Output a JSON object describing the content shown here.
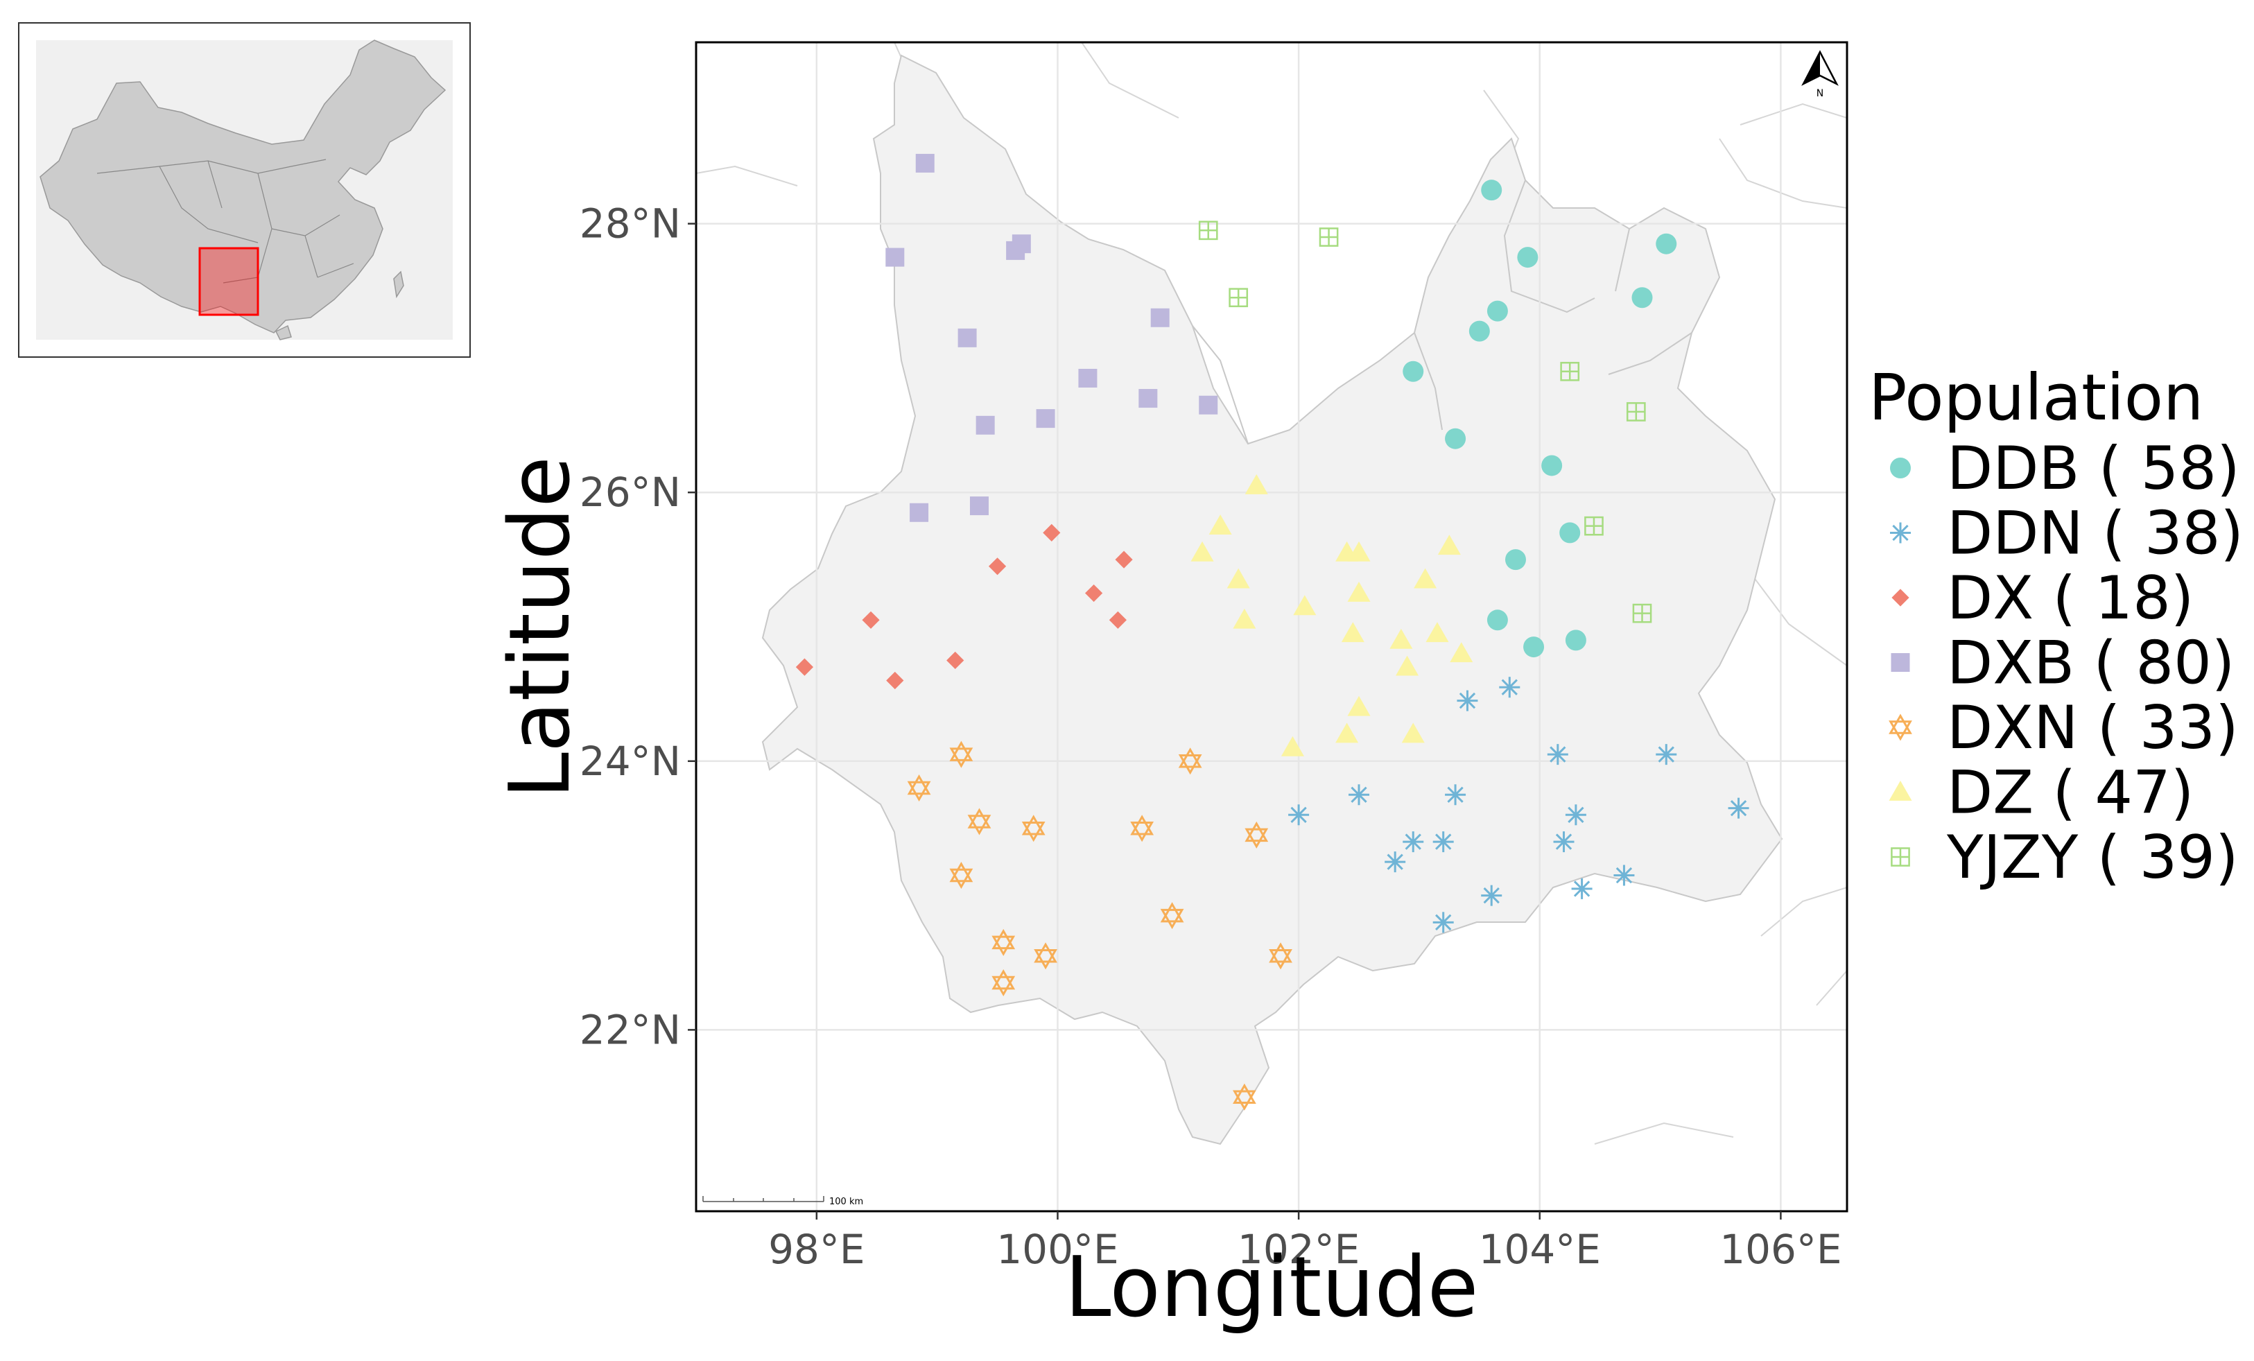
{
  "axes": {
    "x_title": "Longitude",
    "y_title": "Latitude",
    "x_ticks": [
      {
        "value": 98,
        "label": "98°E"
      },
      {
        "value": 100,
        "label": "100°E"
      },
      {
        "value": 102,
        "label": "102°E"
      },
      {
        "value": 104,
        "label": "104°E"
      },
      {
        "value": 106,
        "label": "106°E"
      }
    ],
    "y_ticks": [
      {
        "value": 22,
        "label": "22°N"
      },
      {
        "value": 24,
        "label": "24°N"
      },
      {
        "value": 26,
        "label": "26°N"
      },
      {
        "value": 28,
        "label": "28°N"
      }
    ],
    "xlim": [
      97.0,
      106.55
    ],
    "ylim": [
      20.65,
      29.35
    ],
    "grid": true
  },
  "north_arrow": {
    "label": "N"
  },
  "scale_bar": {
    "label": "100 km"
  },
  "legend": {
    "title": "Population",
    "entries": [
      {
        "label": "DDB ( 58)",
        "shape": "circle",
        "color": "#7fd6cc"
      },
      {
        "label": "DDN ( 38)",
        "shape": "asterisk",
        "color": "#6fb4d6"
      },
      {
        "label": "DX ( 18)",
        "shape": "diamond",
        "color": "#f08070"
      },
      {
        "label": "DXB ( 80)",
        "shape": "square",
        "color": "#bdb7dc"
      },
      {
        "label": "DXN ( 33)",
        "shape": "star6",
        "color": "#f7ae56"
      },
      {
        "label": "DZ ( 47)",
        "shape": "triangle",
        "color": "#fbf4a0"
      },
      {
        "label": "YJZY ( 39)",
        "shape": "squareplus",
        "color": "#a6dc80"
      }
    ]
  },
  "inset": {
    "highlight_color": "#ff0000"
  },
  "colors": {
    "region_fill": "#f2f2f2",
    "background": "#ffffff",
    "grid": "#e6e6e6",
    "inset_land": "#cccccc"
  },
  "chart_data": {
    "type": "scatter",
    "xlabel": "Longitude",
    "ylabel": "Latitude",
    "xlim": [
      97.0,
      106.55
    ],
    "ylim": [
      20.65,
      29.35
    ],
    "legend_placement": "right",
    "series": [
      {
        "name": "DDB ( 58)",
        "points": [
          [
            103.6,
            28.25
          ],
          [
            103.9,
            27.75
          ],
          [
            105.05,
            27.85
          ],
          [
            104.85,
            27.45
          ],
          [
            103.65,
            27.35
          ],
          [
            103.5,
            27.2
          ],
          [
            102.95,
            26.9
          ],
          [
            103.3,
            26.4
          ],
          [
            104.1,
            26.2
          ],
          [
            104.25,
            25.7
          ],
          [
            103.8,
            25.5
          ],
          [
            103.65,
            25.05
          ],
          [
            103.95,
            24.85
          ],
          [
            104.3,
            24.9
          ]
        ]
      },
      {
        "name": "DDN ( 38)",
        "points": [
          [
            103.4,
            24.45
          ],
          [
            103.75,
            24.55
          ],
          [
            104.15,
            24.05
          ],
          [
            105.05,
            24.05
          ],
          [
            105.65,
            23.65
          ],
          [
            104.3,
            23.6
          ],
          [
            104.2,
            23.4
          ],
          [
            103.3,
            23.75
          ],
          [
            102.95,
            23.4
          ],
          [
            103.2,
            23.4
          ],
          [
            102.8,
            23.25
          ],
          [
            102.5,
            23.75
          ],
          [
            102.0,
            23.6
          ],
          [
            103.6,
            23.0
          ],
          [
            104.35,
            23.05
          ],
          [
            104.7,
            23.15
          ],
          [
            103.2,
            22.8
          ]
        ]
      },
      {
        "name": "DX ( 18)",
        "points": [
          [
            97.9,
            24.7
          ],
          [
            98.45,
            25.05
          ],
          [
            98.65,
            24.6
          ],
          [
            99.15,
            24.75
          ],
          [
            99.5,
            25.45
          ],
          [
            99.95,
            25.7
          ],
          [
            100.3,
            25.25
          ],
          [
            100.55,
            25.5
          ],
          [
            100.5,
            25.05
          ]
        ]
      },
      {
        "name": "DXB ( 80)",
        "points": [
          [
            98.9,
            28.45
          ],
          [
            98.65,
            27.75
          ],
          [
            99.7,
            27.85
          ],
          [
            99.65,
            27.8
          ],
          [
            99.25,
            27.15
          ],
          [
            99.4,
            26.5
          ],
          [
            99.9,
            26.55
          ],
          [
            100.25,
            26.85
          ],
          [
            100.75,
            26.7
          ],
          [
            100.85,
            27.3
          ],
          [
            101.25,
            26.65
          ],
          [
            99.35,
            25.9
          ],
          [
            98.85,
            25.85
          ]
        ]
      },
      {
        "name": "DXN ( 33)",
        "points": [
          [
            99.2,
            24.05
          ],
          [
            98.85,
            23.8
          ],
          [
            99.35,
            23.55
          ],
          [
            99.8,
            23.5
          ],
          [
            99.2,
            23.15
          ],
          [
            99.55,
            22.65
          ],
          [
            99.9,
            22.55
          ],
          [
            99.55,
            22.35
          ],
          [
            100.7,
            23.5
          ],
          [
            101.1,
            24.0
          ],
          [
            101.65,
            23.45
          ],
          [
            100.95,
            22.85
          ],
          [
            101.85,
            22.55
          ],
          [
            101.55,
            21.5
          ]
        ]
      },
      {
        "name": "DZ ( 47)",
        "points": [
          [
            101.65,
            26.05
          ],
          [
            101.35,
            25.75
          ],
          [
            101.2,
            25.55
          ],
          [
            101.5,
            25.35
          ],
          [
            101.55,
            25.05
          ],
          [
            102.05,
            25.15
          ],
          [
            102.4,
            25.55
          ],
          [
            102.5,
            25.55
          ],
          [
            102.5,
            25.25
          ],
          [
            102.45,
            24.95
          ],
          [
            102.85,
            24.9
          ],
          [
            102.9,
            24.7
          ],
          [
            103.05,
            25.35
          ],
          [
            103.25,
            25.6
          ],
          [
            103.15,
            24.95
          ],
          [
            103.35,
            24.8
          ],
          [
            102.5,
            24.4
          ],
          [
            102.4,
            24.2
          ],
          [
            102.95,
            24.2
          ],
          [
            101.95,
            24.1
          ]
        ]
      },
      {
        "name": "YJZY ( 39)",
        "points": [
          [
            101.25,
            27.95
          ],
          [
            102.25,
            27.9
          ],
          [
            101.5,
            27.45
          ],
          [
            104.25,
            26.9
          ],
          [
            104.8,
            26.6
          ],
          [
            104.45,
            25.75
          ],
          [
            104.85,
            25.1
          ]
        ]
      }
    ]
  }
}
